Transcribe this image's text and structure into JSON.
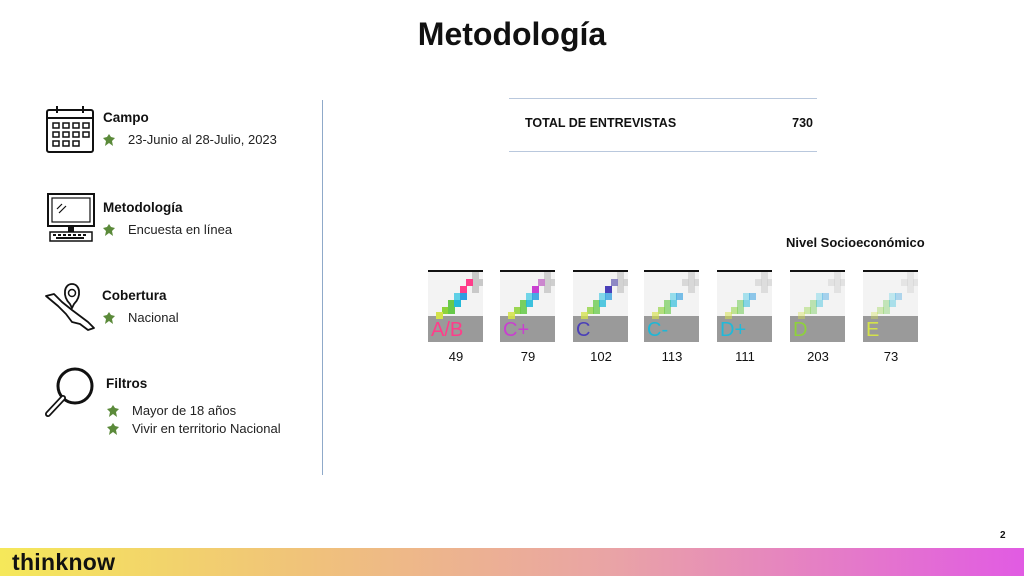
{
  "page": {
    "title": "Metodología",
    "number": "2"
  },
  "sections": {
    "campo": {
      "heading": "Campo",
      "items": [
        "23-Junio al 28-Julio, 2023"
      ]
    },
    "metodologia": {
      "heading": "Metodología",
      "items": [
        "Encuesta en línea"
      ]
    },
    "cobertura": {
      "heading": "Cobertura",
      "items": [
        "Nacional"
      ]
    },
    "filtros": {
      "heading": "Filtros",
      "items": [
        "Mayor de 18 años",
        "Vivir en territorio Nacional"
      ]
    }
  },
  "total": {
    "label": "TOTAL DE ENTREVISTAS",
    "value": "730"
  },
  "nse": {
    "title": "Nivel Socioeconómico",
    "levels": [
      {
        "label": "A/B",
        "count": "49",
        "color": "#ff3d8a"
      },
      {
        "label": "C+",
        "count": "79",
        "color": "#c93fd0"
      },
      {
        "label": "C",
        "count": "102",
        "color": "#4a3fb8"
      },
      {
        "label": "C-",
        "count": "113",
        "color": "#1fb7d6"
      },
      {
        "label": "D+",
        "count": "111",
        "color": "#21b9d9"
      },
      {
        "label": "D",
        "count": "203",
        "color": "#8ed23b"
      },
      {
        "label": "E",
        "count": "73",
        "color": "#d4e24a"
      }
    ]
  },
  "footer": {
    "brand": "thinknow"
  }
}
